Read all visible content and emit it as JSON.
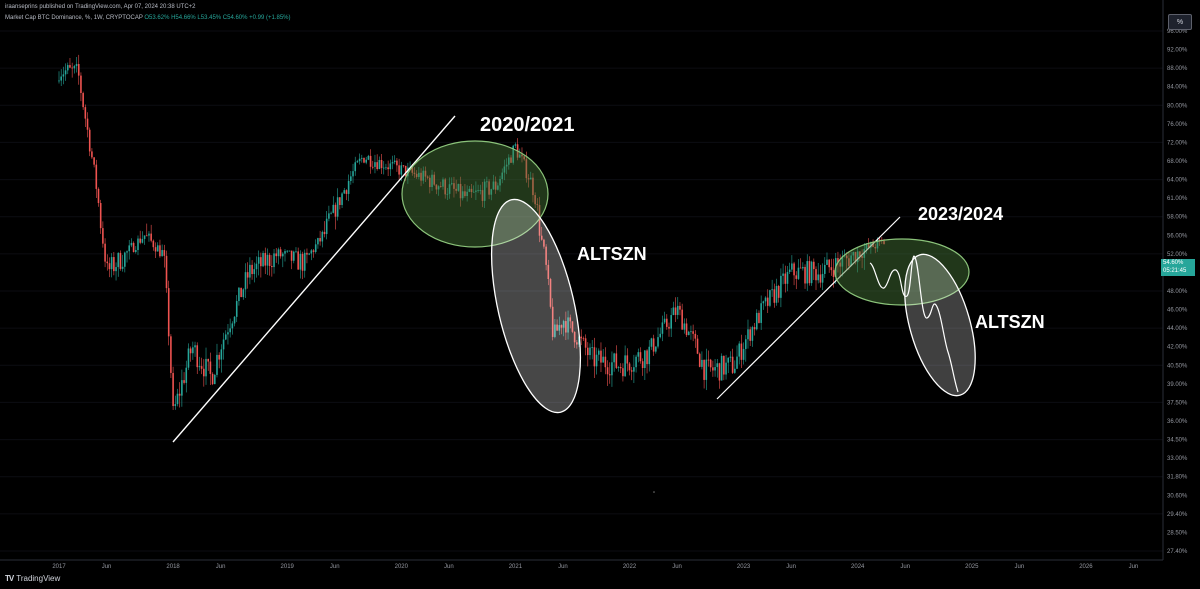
{
  "header": {
    "published_by": "iraanseprins published on TradingView.com, Apr 07, 2024 20:38 UTC+2",
    "symbol_line": "Market Cap BTC Dominance, %, 1W, CRYPTOCAP",
    "ohlc": "O53.62% H54.66% L53.45% C54.60% +0.99 (+1.85%)"
  },
  "toolbar": {
    "percent_button": "%"
  },
  "price_tag": {
    "value": "54.60%",
    "countdown": "05:21:45"
  },
  "footer": {
    "logo_mark": "TV",
    "logo_text": "TradingView"
  },
  "colors": {
    "up": "#26a69a",
    "down": "#ef5350",
    "ellipse_green_fill": "#4a7a3a",
    "ellipse_green_stroke": "#8bc37a",
    "ellipse_white": "#ffffff"
  },
  "annotations": [
    "2020/2021",
    "ALTSZN",
    "2023/2024",
    "ALTSZN"
  ],
  "chart_data": {
    "type": "candlestick",
    "x_axis_labels": [
      "2017",
      "Jun",
      "2018",
      "Jun",
      "2019",
      "Jun",
      "2020",
      "Jun",
      "2021",
      "Jun",
      "2022",
      "Jun",
      "2023",
      "Jun",
      "2024",
      "Jun",
      "2025",
      "Jun",
      "2026",
      "Jun"
    ],
    "y_axis_labels": [
      "96.00%",
      "92.00%",
      "88.00%",
      "84.00%",
      "80.00%",
      "76.00%",
      "72.00%",
      "68.00%",
      "64.00%",
      "61.00%",
      "58.00%",
      "56.00%",
      "52.00%",
      "50.00%",
      "48.00%",
      "46.00%",
      "44.00%",
      "42.00%",
      "40.50%",
      "39.00%",
      "37.50%",
      "36.00%",
      "34.50%",
      "33.00%",
      "31.80%",
      "30.60%",
      "29.40%",
      "28.50%",
      "27.40%"
    ],
    "y_scale": "log",
    "close_path": [
      {
        "x": "2017-01",
        "y": 87.5
      },
      {
        "x": "2017-03",
        "y": 87
      },
      {
        "x": "2017-05",
        "y": 62
      },
      {
        "x": "2017-06",
        "y": 50
      },
      {
        "x": "2017-08",
        "y": 52
      },
      {
        "x": "2017-10",
        "y": 56
      },
      {
        "x": "2017-12",
        "y": 52
      },
      {
        "x": "2018-01",
        "y": 36.5
      },
      {
        "x": "2018-03",
        "y": 42
      },
      {
        "x": "2018-05",
        "y": 39.5
      },
      {
        "x": "2018-09",
        "y": 50
      },
      {
        "x": "2018-12",
        "y": 52
      },
      {
        "x": "2019-03",
        "y": 51
      },
      {
        "x": "2019-06",
        "y": 59
      },
      {
        "x": "2019-09",
        "y": 69
      },
      {
        "x": "2020-01",
        "y": 66
      },
      {
        "x": "2020-04",
        "y": 64
      },
      {
        "x": "2020-08",
        "y": 61
      },
      {
        "x": "2020-11",
        "y": 63
      },
      {
        "x": "2021-01",
        "y": 71
      },
      {
        "x": "2021-03",
        "y": 62
      },
      {
        "x": "2021-05",
        "y": 43
      },
      {
        "x": "2021-06",
        "y": 45
      },
      {
        "x": "2021-09",
        "y": 41
      },
      {
        "x": "2021-12",
        "y": 40.5
      },
      {
        "x": "2022-03",
        "y": 41.5
      },
      {
        "x": "2022-06",
        "y": 46
      },
      {
        "x": "2022-09",
        "y": 40
      },
      {
        "x": "2022-12",
        "y": 40.5
      },
      {
        "x": "2023-03",
        "y": 46
      },
      {
        "x": "2023-06",
        "y": 50
      },
      {
        "x": "2023-09",
        "y": 50
      },
      {
        "x": "2023-12",
        "y": 51.5
      },
      {
        "x": "2024-03",
        "y": 54
      },
      {
        "x": "2024-04",
        "y": 54.6
      }
    ]
  }
}
